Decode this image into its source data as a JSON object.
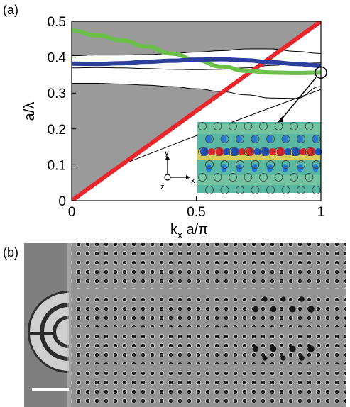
{
  "panels": {
    "a_label": "(a)",
    "b_label": "(b)"
  },
  "chart_data": {
    "type": "line",
    "title": "",
    "xlabel_main": "k",
    "xlabel_sub": "x",
    "xlabel_rest": " a/π",
    "ylabel": "a/λ",
    "xlim": [
      0,
      1
    ],
    "ylim": [
      0,
      0.5
    ],
    "x_ticks": [
      "0",
      "0.5",
      "1"
    ],
    "y_ticks": [
      "0",
      "0.1",
      "0.2",
      "0.3",
      "0.4",
      "0.5"
    ],
    "grid": false,
    "series": [
      {
        "role": "light line",
        "color": "#e8262b",
        "x": [
          0,
          1
        ],
        "y": [
          0,
          0.5
        ]
      },
      {
        "role": "green guided band",
        "color": "#6cc04a",
        "x": [
          0,
          0.1,
          0.2,
          0.3,
          0.4,
          0.5,
          0.6,
          0.7,
          0.8,
          0.9,
          1.0
        ],
        "y": [
          0.474,
          0.461,
          0.447,
          0.43,
          0.41,
          0.392,
          0.374,
          0.362,
          0.357,
          0.356,
          0.357
        ]
      },
      {
        "role": "blue guided band",
        "color": "#2c3e9e",
        "x": [
          0,
          0.1,
          0.2,
          0.3,
          0.4,
          0.5,
          0.6,
          0.7,
          0.8,
          0.9,
          1.0
        ],
        "y": [
          0.382,
          0.381,
          0.383,
          0.387,
          0.39,
          0.393,
          0.394,
          0.391,
          0.386,
          0.381,
          0.376
        ]
      }
    ],
    "shaded_regions": {
      "color": "#9a9a9a",
      "top_gray_lower_edge": {
        "x": [
          0,
          0.1,
          0.2,
          0.3,
          0.4,
          0.5,
          0.6,
          0.7,
          0.8,
          0.9,
          1.0
        ],
        "y": [
          0.404,
          0.406,
          0.406,
          0.407,
          0.41,
          0.414,
          0.418,
          0.423,
          0.423,
          0.416,
          0.41
        ]
      },
      "gap_white_lower_edge": {
        "x": [
          0,
          0.1,
          0.2,
          0.3,
          0.4,
          0.5,
          0.6,
          0.7,
          0.8,
          0.9,
          1.0
        ],
        "y": [
          0.37,
          0.371,
          0.37,
          0.368,
          0.366,
          0.365,
          0.366,
          0.37,
          0.377,
          0.382,
          0.384
        ]
      },
      "lower_gray_upper_edge": {
        "x": [
          0,
          0.1,
          0.2,
          0.3,
          0.4,
          0.5,
          0.6,
          0.7,
          0.8,
          0.9,
          1.0
        ],
        "y": [
          0.327,
          0.327,
          0.325,
          0.322,
          0.318,
          0.312,
          0.304,
          0.295,
          0.286,
          0.285,
          0.318
        ]
      }
    },
    "inset": {
      "axes_labels": [
        "y",
        "x",
        "z"
      ],
      "field_map": "mode profile"
    },
    "highlight_point": {
      "x": 1.0,
      "y": 0.357
    }
  },
  "micrograph": {
    "description_colors": {
      "background": "#8c8c8c",
      "holes": "#1e1e1e",
      "coupler": "#3a3a3a"
    }
  }
}
